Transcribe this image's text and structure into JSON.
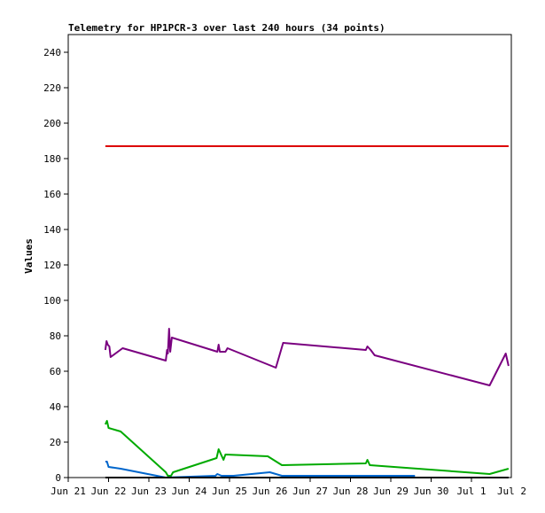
{
  "chart_data": {
    "type": "line",
    "title": "Telemetry for HP1PCR-3 over last 240 hours (34 points)",
    "ylabel": "Values",
    "xlabel": "",
    "ylim": [
      0,
      250
    ],
    "xlim": [
      0,
      11
    ],
    "x_tick_labels": [
      "Jun 21",
      "Jun 22",
      "Jun 23",
      "Jun 24",
      "Jun 25",
      "Jun 26",
      "Jun 27",
      "Jun 28",
      "Jun 29",
      "Jun 30",
      "Jul 1",
      "Jul 2"
    ],
    "y_ticks": [
      0,
      20,
      40,
      60,
      80,
      100,
      120,
      140,
      160,
      180,
      200,
      220,
      240
    ],
    "x_unit": "days since Jun 21 00:00",
    "series": [
      {
        "name": "",
        "color": "#dd0000",
        "points": [
          [
            0.92,
            187
          ],
          [
            10.92,
            187
          ]
        ]
      },
      {
        "name": "",
        "color": "#7a0080",
        "points": [
          [
            0.92,
            72
          ],
          [
            0.95,
            77
          ],
          [
            0.98,
            75
          ],
          [
            1.02,
            74
          ],
          [
            1.05,
            68
          ],
          [
            1.35,
            73
          ],
          [
            2.42,
            66
          ],
          [
            2.45,
            72
          ],
          [
            2.47,
            70
          ],
          [
            2.5,
            84
          ],
          [
            2.53,
            71
          ],
          [
            2.57,
            79
          ],
          [
            3.7,
            71
          ],
          [
            3.73,
            75
          ],
          [
            3.76,
            71
          ],
          [
            3.9,
            71
          ],
          [
            3.95,
            73
          ],
          [
            5.15,
            62
          ],
          [
            5.33,
            76
          ],
          [
            7.38,
            72
          ],
          [
            7.42,
            74
          ],
          [
            7.5,
            72
          ],
          [
            7.6,
            69
          ],
          [
            10.45,
            52
          ],
          [
            10.85,
            70
          ],
          [
            10.92,
            63
          ]
        ]
      },
      {
        "name": "",
        "color": "#00aa00",
        "points": [
          [
            0.92,
            30
          ],
          [
            0.96,
            32
          ],
          [
            1.0,
            28
          ],
          [
            1.3,
            26
          ],
          [
            2.42,
            3
          ],
          [
            2.47,
            1
          ],
          [
            2.55,
            1
          ],
          [
            2.6,
            3
          ],
          [
            3.68,
            11
          ],
          [
            3.73,
            16
          ],
          [
            3.85,
            10
          ],
          [
            3.9,
            13
          ],
          [
            4.95,
            12
          ],
          [
            5.3,
            7
          ],
          [
            7.38,
            8
          ],
          [
            7.42,
            10
          ],
          [
            7.48,
            7
          ],
          [
            10.45,
            2
          ],
          [
            10.92,
            5
          ]
        ]
      },
      {
        "name": "",
        "color": "#0066cc",
        "points": [
          [
            0.92,
            9
          ],
          [
            0.96,
            9
          ],
          [
            1.0,
            6
          ],
          [
            1.3,
            5
          ],
          [
            2.42,
            0
          ],
          [
            3.65,
            1
          ],
          [
            3.7,
            2
          ],
          [
            3.8,
            1
          ],
          [
            4.1,
            1
          ],
          [
            5.0,
            3
          ],
          [
            5.3,
            1
          ],
          [
            8.6,
            1
          ]
        ]
      },
      {
        "name": "",
        "color": "#000000",
        "points": [
          [
            0.92,
            0
          ],
          [
            10.92,
            0
          ]
        ]
      }
    ]
  }
}
